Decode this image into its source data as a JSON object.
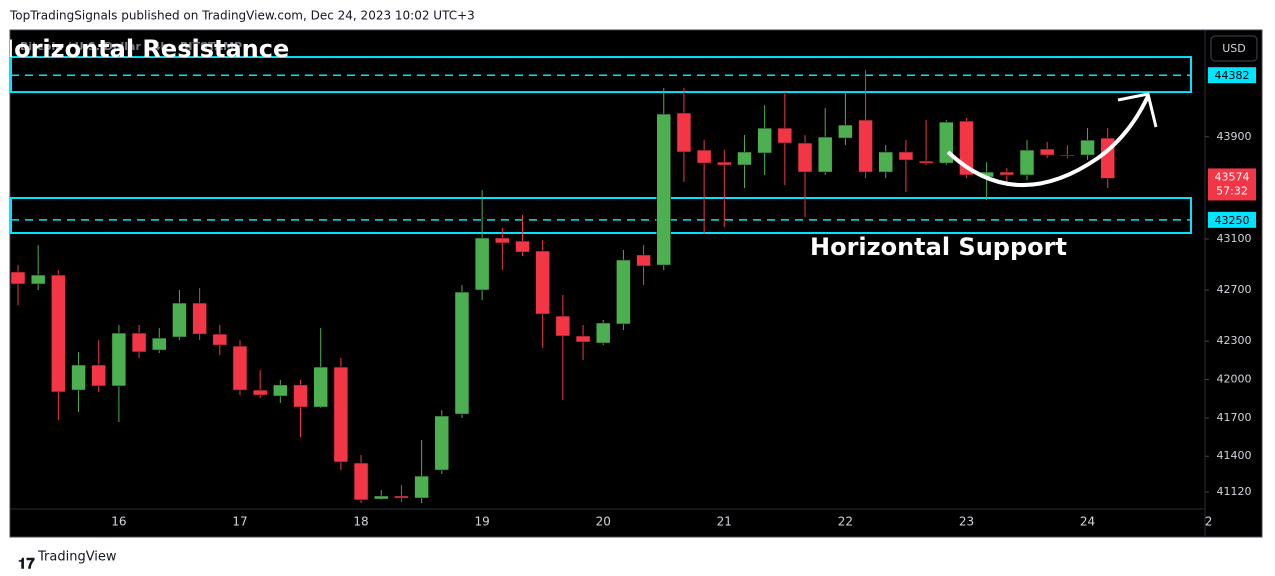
{
  "header": {
    "published": "TopTradingSignals published on TradingView.com, Dec 24, 2023 10:02 UTC+3"
  },
  "footer": {
    "logo": "TradingView"
  },
  "chart_data": {
    "type": "candlestick",
    "symbol": "Bitcoin / U.S. Dollar · 4h · BITSTAMP",
    "currency": "USD",
    "categories": [
      null,
      null,
      null,
      null,
      null,
      "16",
      null,
      null,
      null,
      null,
      null,
      "17",
      null,
      null,
      null,
      null,
      null,
      "18",
      null,
      null,
      null,
      null,
      null,
      "19",
      null,
      null,
      null,
      null,
      null,
      "20",
      null,
      null,
      null,
      null,
      null,
      "21",
      null,
      null,
      null,
      null,
      null,
      "22",
      null,
      null,
      null,
      null,
      null,
      "23",
      null,
      null,
      null,
      null,
      null,
      "24",
      null,
      null,
      null,
      null,
      null,
      "2"
    ],
    "open": [
      42842,
      42748,
      42818,
      41918,
      42114,
      41950,
      42364,
      42231,
      42333,
      42599,
      42356,
      42262,
      41918,
      41871,
      41958,
      41785,
      42098,
      41347,
      41065,
      41089,
      41073,
      41292,
      41730,
      42701,
      43108,
      43084,
      43006,
      42497,
      42341,
      42286,
      42435,
      42975,
      42896,
      44086,
      43796,
      43702,
      43679,
      43773,
      43968,
      43851,
      43624,
      43890,
      44031,
      43624,
      43781,
      43710,
      43694,
      44023,
      43585,
      43624,
      43601,
      43804,
      43757,
      43757,
      43890,
      null,
      null,
      null,
      null,
      null
    ],
    "high": [
      42896,
      43053,
      42857,
      42216,
      42310,
      42427,
      42427,
      42403,
      42701,
      42716,
      42427,
      42310,
      42075,
      41997,
      41997,
      42403,
      42169,
      41410,
      41136,
      41175,
      41527,
      41762,
      42740,
      43484,
      43186,
      43288,
      43092,
      42662,
      42427,
      42466,
      43014,
      43053,
      44281,
      44281,
      43874,
      43796,
      43913,
      44148,
      44250,
      43913,
      44125,
      44250,
      44422,
      43835,
      43874,
      44031,
      44031,
      44047,
      43702,
      43655,
      43874,
      43859,
      43835,
      43968,
      43968,
      null,
      null,
      null,
      null,
      null
    ],
    "low": [
      42583,
      42701,
      41683,
      41746,
      41903,
      41668,
      42169,
      42208,
      42310,
      42310,
      42192,
      41879,
      41856,
      41817,
      41550,
      41777,
      41292,
      41034,
      41058,
      41042,
      41034,
      41261,
      41699,
      42622,
      42857,
      42967,
      42247,
      41840,
      42153,
      42270,
      42388,
      42740,
      42857,
      43546,
      43138,
      43193,
      43499,
      43601,
      43522,
      43271,
      43601,
      43835,
      43577,
      43577,
      43468,
      43679,
      43679,
      43577,
      43405,
      43546,
      43561,
      43733,
      43733,
      43718,
      43499,
      null,
      null,
      null,
      null,
      null
    ],
    "close": [
      42748,
      42818,
      41903,
      42114,
      41950,
      42364,
      42216,
      42325,
      42599,
      42356,
      42270,
      41918,
      41879,
      41958,
      41785,
      42098,
      41355,
      41058,
      41089,
      41073,
      41245,
      41715,
      42685,
      43108,
      43069,
      42998,
      42513,
      42341,
      42294,
      42443,
      42936,
      42889,
      44078,
      43781,
      43694,
      43679,
      43781,
      43968,
      43851,
      43624,
      43898,
      43992,
      43624,
      43781,
      43718,
      43694,
      44015,
      43601,
      43624,
      43601,
      43796,
      43757,
      43749,
      43874,
      43574,
      null,
      null,
      null,
      null,
      null
    ],
    "up_color": "#4caf50",
    "down_color": "#f23645",
    "ylim": [
      40995,
      44720
    ],
    "yticks": [
      41120,
      41400,
      41700,
      42000,
      42300,
      42700,
      43100,
      43900
    ],
    "zones": [
      {
        "label": "Horizontal Resistance",
        "top": 44524,
        "bottom": 44250,
        "level": 44382
      },
      {
        "label": "Horizontal Support",
        "top": 43421,
        "bottom": 43147,
        "level": 43250
      }
    ],
    "zone_color": "#00e5ff",
    "last_price": {
      "value": 43574,
      "countdown": "57:32"
    }
  }
}
